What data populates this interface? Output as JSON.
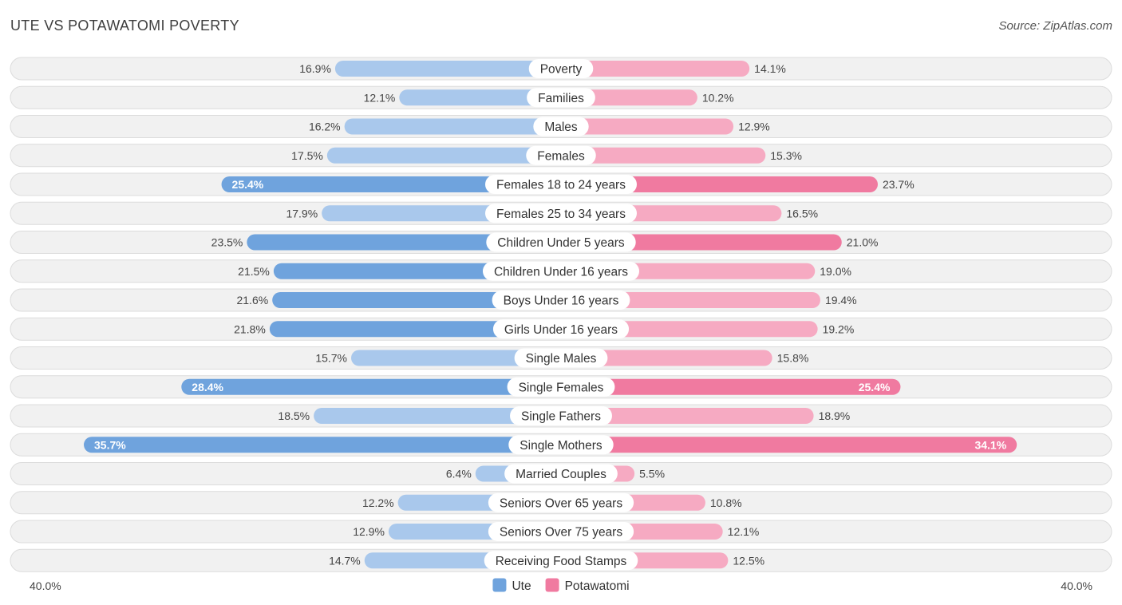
{
  "header": {
    "title": "UTE VS POTAWATOMI POVERTY",
    "source": "Source: ZipAtlas.com"
  },
  "colors": {
    "ute": "#6fa3dd",
    "ute_light": "#a9c8ec",
    "potawatomi": "#f07aa0",
    "potawatomi_light": "#f6aac2"
  },
  "chart_data": {
    "type": "bar",
    "orientation": "diverging-horizontal",
    "categories": [
      "Poverty",
      "Families",
      "Males",
      "Females",
      "Females 18 to 24 years",
      "Females 25 to 34 years",
      "Children Under 5 years",
      "Children Under 16 years",
      "Boys Under 16 years",
      "Girls Under 16 years",
      "Single Males",
      "Single Females",
      "Single Fathers",
      "Single Mothers",
      "Married Couples",
      "Seniors Over 65 years",
      "Seniors Over 75 years",
      "Receiving Food Stamps"
    ],
    "series": [
      {
        "name": "Ute",
        "values": [
          16.9,
          12.1,
          16.2,
          17.5,
          25.4,
          17.9,
          23.5,
          21.5,
          21.6,
          21.8,
          15.7,
          28.4,
          18.5,
          35.7,
          6.4,
          12.2,
          12.9,
          14.7
        ],
        "labels": [
          "16.9%",
          "12.1%",
          "16.2%",
          "17.5%",
          "25.4%",
          "17.9%",
          "23.5%",
          "21.5%",
          "21.6%",
          "21.8%",
          "15.7%",
          "28.4%",
          "18.5%",
          "35.7%",
          "6.4%",
          "12.2%",
          "12.9%",
          "14.7%"
        ]
      },
      {
        "name": "Potawatomi",
        "values": [
          14.1,
          10.2,
          12.9,
          15.3,
          23.7,
          16.5,
          21.0,
          19.0,
          19.4,
          19.2,
          15.8,
          25.4,
          18.9,
          34.1,
          5.5,
          10.8,
          12.1,
          12.5
        ],
        "labels": [
          "14.1%",
          "10.2%",
          "12.9%",
          "15.3%",
          "23.7%",
          "16.5%",
          "21.0%",
          "19.0%",
          "19.4%",
          "19.2%",
          "15.8%",
          "25.4%",
          "18.9%",
          "34.1%",
          "5.5%",
          "10.8%",
          "12.1%",
          "12.5%"
        ]
      }
    ],
    "xlim": [
      0,
      40
    ],
    "axis_min_label": "40.0%",
    "axis_max_label": "40.0%",
    "legend_position": "bottom-center",
    "grid": false
  }
}
